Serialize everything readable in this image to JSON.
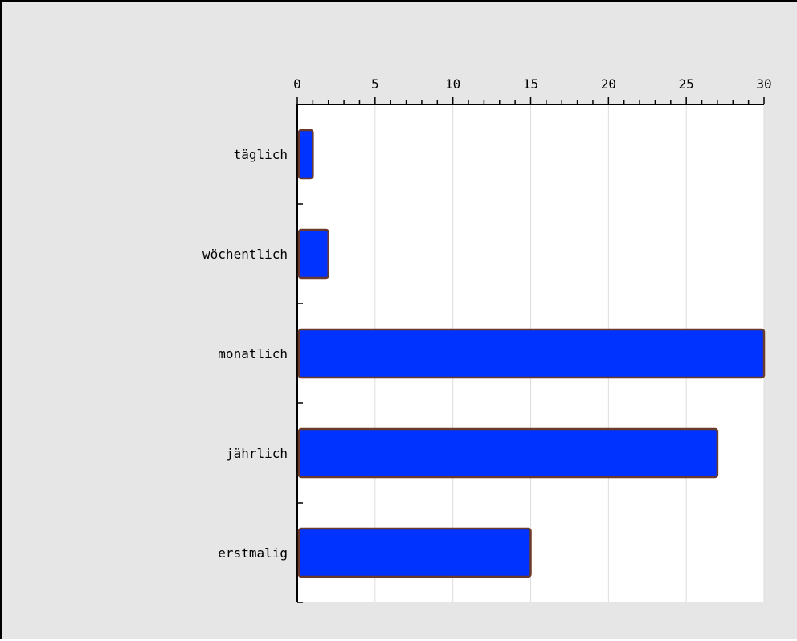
{
  "chart_data": {
    "type": "bar",
    "orientation": "horizontal",
    "categories": [
      "täglich",
      "wöchentlich",
      "monatlich",
      "jährlich",
      "erstmalig"
    ],
    "values": [
      1,
      2,
      30,
      27,
      15
    ],
    "xlim": [
      0,
      30
    ],
    "xticks": [
      0,
      5,
      10,
      15,
      20,
      25,
      30
    ],
    "xaxis_position": "top",
    "grid": true,
    "title": "",
    "xlabel": "",
    "ylabel": ""
  },
  "colors": {
    "background": "#e6e6e6",
    "plot_background": "#ffffff",
    "bar_fill": "#0033ff",
    "bar_border": "#6b3a2a",
    "grid": "#dddddd"
  }
}
